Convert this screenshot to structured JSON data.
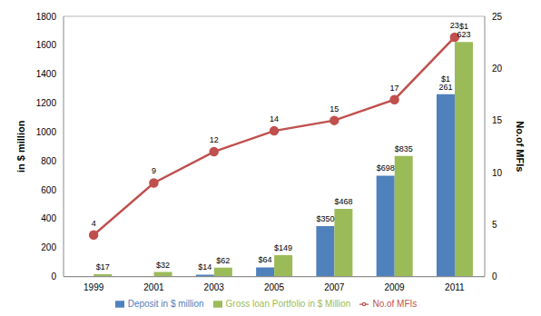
{
  "chart_data": {
    "type": "bar",
    "categories": [
      "1999",
      "2001",
      "2003",
      "2005",
      "2007",
      "2009",
      "2011"
    ],
    "series": [
      {
        "name": "Deposit in $ million",
        "type": "bar",
        "color": "#4f81bd",
        "values": [
          null,
          null,
          14,
          64,
          350,
          698,
          1261
        ],
        "value_labels": [
          null,
          null,
          "$14",
          "$64",
          "$350",
          "$698",
          "$1 261"
        ]
      },
      {
        "name": "Gross loan Portfolio in $ Million",
        "type": "bar",
        "color": "#9bbb59",
        "values": [
          17,
          32,
          62,
          149,
          468,
          835,
          1623
        ],
        "value_labels": [
          "$17",
          "$32",
          "$62",
          "$149",
          "$468",
          "$835",
          "$1 623"
        ]
      },
      {
        "name": "No.of MFIs",
        "type": "line",
        "axis": "y2",
        "color": "#c0504d",
        "marker": "circle",
        "line_style": "solid",
        "values": [
          4,
          9,
          12,
          14,
          15,
          17,
          23
        ]
      }
    ],
    "y_label": "in $ million",
    "y2_label": "No.of MFIs",
    "ylim": [
      0,
      1800
    ],
    "yticks": [
      0,
      200,
      400,
      600,
      800,
      1000,
      1200,
      1400,
      1600,
      1800
    ],
    "y2lim": [
      0,
      25
    ],
    "y2ticks": [
      0,
      5,
      10,
      15,
      20,
      25
    ],
    "grid": true,
    "legend": "bottom",
    "data_labels": true
  }
}
